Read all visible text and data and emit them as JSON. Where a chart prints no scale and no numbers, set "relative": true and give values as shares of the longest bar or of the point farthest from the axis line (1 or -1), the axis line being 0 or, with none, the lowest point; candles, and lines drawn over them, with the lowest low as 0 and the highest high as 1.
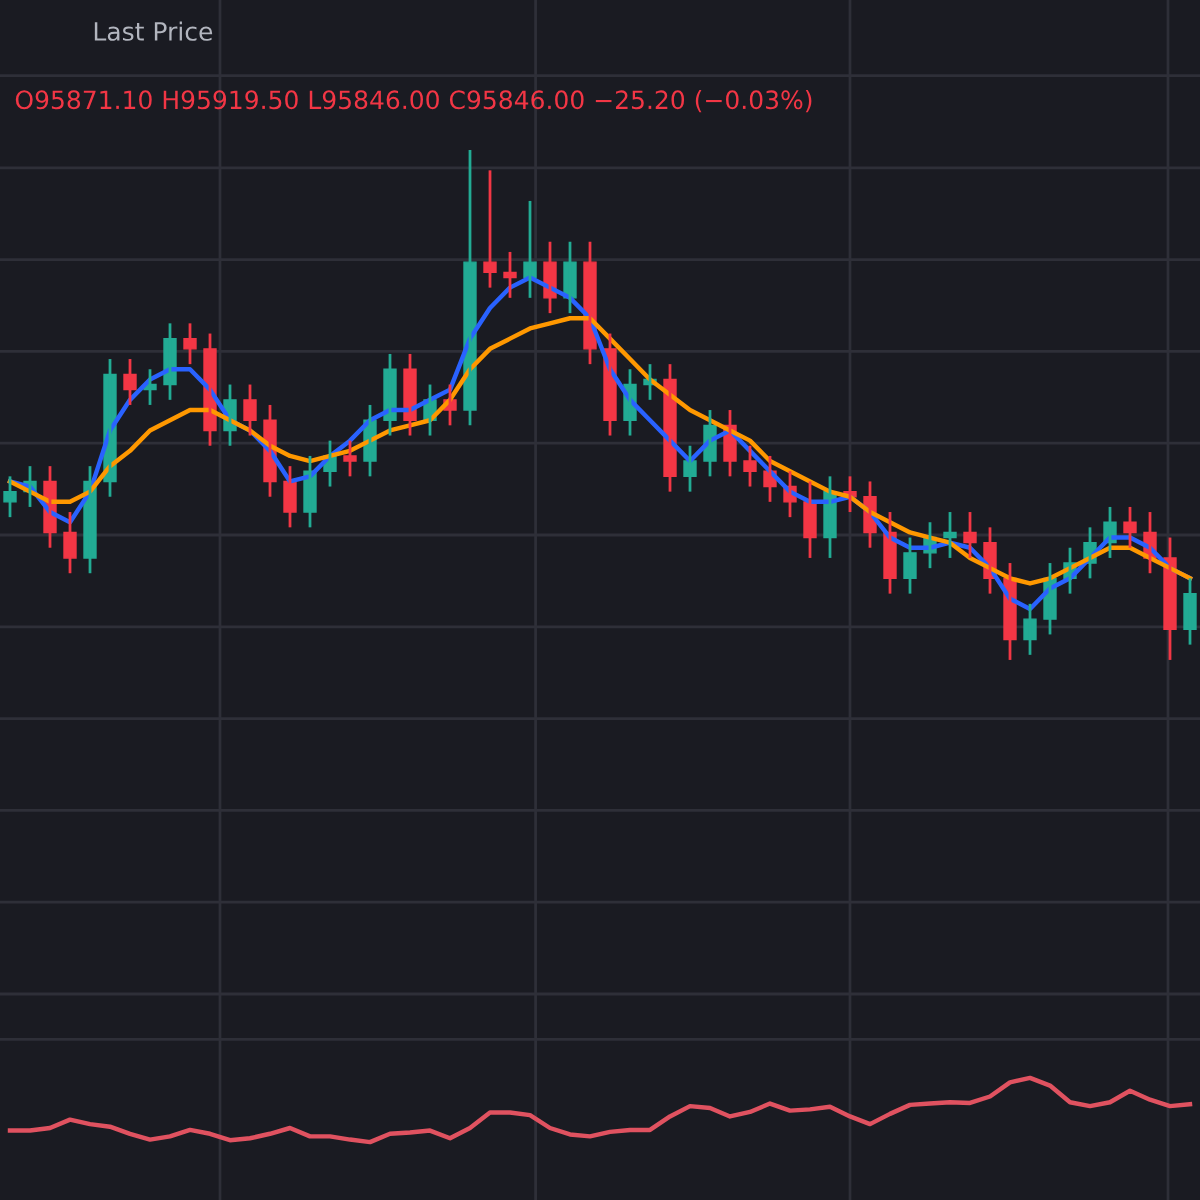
{
  "chart_data": [
    {
      "type": "candlestick",
      "relative": true,
      "grid": true,
      "annotations": [
        "Last Price",
        "O95871.10 H95919.50 L95846.00 C95846.00 −25.20 (−0.03%)"
      ],
      "categories": [
        null,
        null,
        null,
        null,
        null,
        null,
        null,
        null,
        null,
        null,
        null,
        null,
        null,
        null,
        null,
        null,
        null,
        null,
        null,
        null,
        null,
        null,
        null,
        null,
        null,
        null,
        null,
        null,
        null,
        null,
        null,
        null,
        null,
        null,
        null,
        null,
        null,
        null,
        null,
        null,
        null,
        null,
        null,
        null,
        null,
        null,
        null,
        null,
        null,
        null,
        null,
        null,
        null,
        null,
        null,
        null,
        null,
        null,
        null,
        null
      ],
      "ohlc": [
        [
          0.31,
          0.36,
          0.28,
          0.33
        ],
        [
          0.33,
          0.38,
          0.3,
          0.35
        ],
        [
          0.35,
          0.38,
          0.22,
          0.25
        ],
        [
          0.25,
          0.29,
          0.17,
          0.2
        ],
        [
          0.2,
          0.38,
          0.17,
          0.35
        ],
        [
          0.35,
          0.59,
          0.32,
          0.56
        ],
        [
          0.56,
          0.59,
          0.5,
          0.53
        ],
        [
          0.53,
          0.57,
          0.5,
          0.54
        ],
        [
          0.54,
          0.66,
          0.51,
          0.63
        ],
        [
          0.63,
          0.66,
          0.58,
          0.61
        ],
        [
          0.61,
          0.64,
          0.42,
          0.45
        ],
        [
          0.45,
          0.54,
          0.42,
          0.51
        ],
        [
          0.51,
          0.54,
          0.44,
          0.47
        ],
        [
          0.47,
          0.5,
          0.32,
          0.35
        ],
        [
          0.35,
          0.38,
          0.26,
          0.29
        ],
        [
          0.29,
          0.4,
          0.26,
          0.37
        ],
        [
          0.37,
          0.43,
          0.34,
          0.4
        ],
        [
          0.4,
          0.43,
          0.36,
          0.39
        ],
        [
          0.39,
          0.5,
          0.36,
          0.47
        ],
        [
          0.47,
          0.6,
          0.44,
          0.57
        ],
        [
          0.57,
          0.6,
          0.44,
          0.47
        ],
        [
          0.47,
          0.54,
          0.44,
          0.51
        ],
        [
          0.51,
          0.54,
          0.46,
          0.49
        ],
        [
          0.49,
          1.0,
          0.46,
          0.78
        ],
        [
          0.78,
          0.96,
          0.73,
          0.76
        ],
        [
          0.76,
          0.8,
          0.71,
          0.75
        ],
        [
          0.75,
          0.9,
          0.71,
          0.78
        ],
        [
          0.78,
          0.82,
          0.68,
          0.71
        ],
        [
          0.71,
          0.82,
          0.68,
          0.78
        ],
        [
          0.78,
          0.82,
          0.58,
          0.61
        ],
        [
          0.61,
          0.64,
          0.44,
          0.47
        ],
        [
          0.47,
          0.57,
          0.44,
          0.54
        ],
        [
          0.54,
          0.58,
          0.51,
          0.55
        ],
        [
          0.55,
          0.58,
          0.33,
          0.36
        ],
        [
          0.36,
          0.42,
          0.33,
          0.39
        ],
        [
          0.39,
          0.49,
          0.36,
          0.46
        ],
        [
          0.46,
          0.49,
          0.36,
          0.39
        ],
        [
          0.39,
          0.42,
          0.34,
          0.37
        ],
        [
          0.37,
          0.4,
          0.31,
          0.34
        ],
        [
          0.34,
          0.37,
          0.28,
          0.31
        ],
        [
          0.31,
          0.35,
          0.2,
          0.24
        ],
        [
          0.24,
          0.36,
          0.2,
          0.33
        ],
        [
          0.33,
          0.36,
          0.29,
          0.32
        ],
        [
          0.32,
          0.35,
          0.22,
          0.25
        ],
        [
          0.25,
          0.29,
          0.13,
          0.16
        ],
        [
          0.16,
          0.24,
          0.13,
          0.21
        ],
        [
          0.21,
          0.27,
          0.18,
          0.24
        ],
        [
          0.24,
          0.29,
          0.2,
          0.25
        ],
        [
          0.25,
          0.29,
          0.2,
          0.23
        ],
        [
          0.23,
          0.26,
          0.13,
          0.16
        ],
        [
          0.16,
          0.19,
          0.0,
          0.04
        ],
        [
          0.04,
          0.11,
          0.01,
          0.08
        ],
        [
          0.08,
          0.19,
          0.05,
          0.16
        ],
        [
          0.16,
          0.22,
          0.13,
          0.19
        ],
        [
          0.19,
          0.26,
          0.16,
          0.23
        ],
        [
          0.23,
          0.3,
          0.2,
          0.27
        ],
        [
          0.27,
          0.3,
          0.22,
          0.25
        ],
        [
          0.25,
          0.29,
          0.17,
          0.2
        ],
        [
          0.2,
          0.24,
          0.0,
          0.06
        ],
        [
          0.06,
          0.16,
          0.03,
          0.13
        ]
      ],
      "colors": [
        "#22ab94",
        "#22ab94",
        "#f23645",
        "#f23645",
        "#22ab94",
        "#22ab94",
        "#f23645",
        "#22ab94",
        "#22ab94",
        "#f23645",
        "#f23645",
        "#22ab94",
        "#f23645",
        "#f23645",
        "#f23645",
        "#22ab94",
        "#22ab94",
        "#f23645",
        "#22ab94",
        "#22ab94",
        "#f23645",
        "#22ab94",
        "#f23645",
        "#22ab94",
        "#f23645",
        "#f23645",
        "#22ab94",
        "#f23645",
        "#22ab94",
        "#f23645",
        "#f23645",
        "#22ab94",
        "#22ab94",
        "#f23645",
        "#22ab94",
        "#22ab94",
        "#f23645",
        "#f23645",
        "#f23645",
        "#f23645",
        "#f23645",
        "#22ab94",
        "#f23645",
        "#f23645",
        "#f23645",
        "#22ab94",
        "#22ab94",
        "#22ab94",
        "#f23645",
        "#f23645",
        "#f23645",
        "#22ab94",
        "#22ab94",
        "#22ab94",
        "#22ab94",
        "#22ab94",
        "#f23645",
        "#f23645",
        "#f23645",
        "#22ab94"
      ],
      "series": [
        {
          "type": "line",
          "color": "#2962ff",
          "values": [
            0.35,
            0.34,
            0.29,
            0.27,
            0.33,
            0.45,
            0.51,
            0.55,
            0.57,
            0.57,
            0.53,
            0.47,
            0.45,
            0.41,
            0.35,
            0.36,
            0.4,
            0.43,
            0.47,
            0.49,
            0.49,
            0.51,
            0.53,
            0.63,
            0.69,
            0.73,
            0.75,
            0.73,
            0.71,
            0.67,
            0.57,
            0.51,
            0.47,
            0.43,
            0.39,
            0.43,
            0.45,
            0.41,
            0.37,
            0.33,
            0.31,
            0.31,
            0.32,
            0.29,
            0.24,
            0.22,
            0.22,
            0.23,
            0.22,
            0.18,
            0.12,
            0.1,
            0.14,
            0.16,
            0.2,
            0.24,
            0.24,
            0.22,
            0.18,
            0.16
          ]
        },
        {
          "type": "line",
          "color": "#ff9800",
          "values": [
            0.35,
            0.33,
            0.31,
            0.31,
            0.33,
            0.38,
            0.41,
            0.45,
            0.47,
            0.49,
            0.49,
            0.47,
            0.45,
            0.42,
            0.4,
            0.39,
            0.4,
            0.41,
            0.43,
            0.45,
            0.46,
            0.47,
            0.51,
            0.57,
            0.61,
            0.63,
            0.65,
            0.66,
            0.67,
            0.67,
            0.63,
            0.59,
            0.55,
            0.52,
            0.49,
            0.47,
            0.45,
            0.43,
            0.39,
            0.37,
            0.35,
            0.33,
            0.32,
            0.29,
            0.27,
            0.25,
            0.24,
            0.23,
            0.2,
            0.18,
            0.16,
            0.15,
            0.16,
            0.18,
            0.2,
            0.22,
            0.22,
            0.2,
            0.18,
            0.16
          ]
        }
      ]
    },
    {
      "type": "line",
      "relative": true,
      "grid": true,
      "categories": [
        null,
        null,
        null,
        null,
        null,
        null,
        null,
        null,
        null,
        null,
        null,
        null,
        null,
        null,
        null,
        null,
        null,
        null,
        null,
        null,
        null,
        null,
        null,
        null,
        null,
        null,
        null,
        null,
        null,
        null,
        null,
        null,
        null,
        null,
        null,
        null,
        null,
        null,
        null,
        null,
        null,
        null,
        null,
        null,
        null,
        null,
        null,
        null,
        null,
        null,
        null,
        null,
        null,
        null,
        null,
        null,
        null,
        null,
        null,
        null
      ],
      "series": [
        {
          "color": "#e05260",
          "values": [
            0.18,
            0.18,
            0.22,
            0.35,
            0.28,
            0.24,
            0.13,
            0.04,
            0.09,
            0.19,
            0.13,
            0.03,
            0.06,
            0.13,
            0.22,
            0.09,
            0.09,
            0.04,
            0.0,
            0.13,
            0.15,
            0.18,
            0.06,
            0.22,
            0.46,
            0.46,
            0.42,
            0.22,
            0.12,
            0.09,
            0.16,
            0.19,
            0.19,
            0.4,
            0.56,
            0.53,
            0.4,
            0.47,
            0.6,
            0.49,
            0.51,
            0.55,
            0.4,
            0.28,
            0.44,
            0.58,
            0.6,
            0.62,
            0.61,
            0.71,
            0.93,
            1.0,
            0.88,
            0.62,
            0.56,
            0.62,
            0.8,
            0.66,
            0.56,
            0.59
          ]
        }
      ]
    }
  ]
}
